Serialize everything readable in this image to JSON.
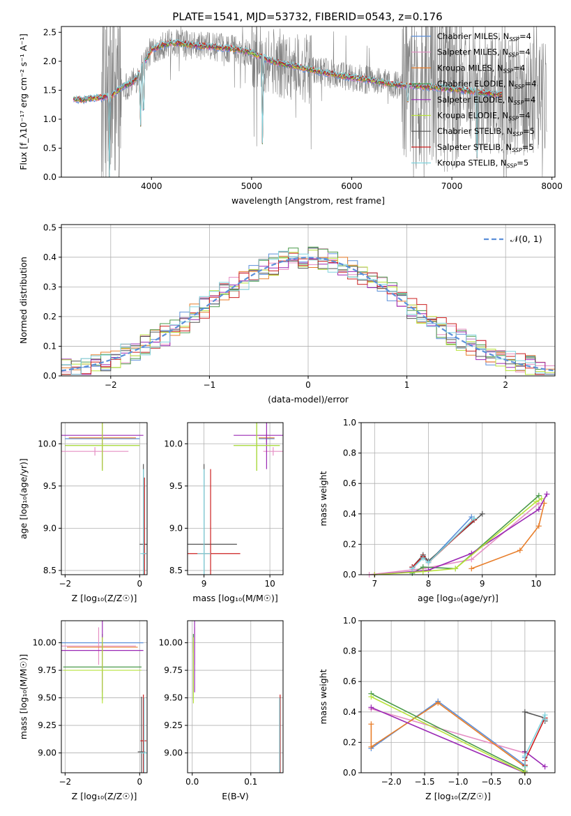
{
  "figure": {
    "title": "PLATE=1541, MJD=53732, FIBERID=0543, z=0.176"
  },
  "colors": {
    "Chabrier MILES": "#5b8fd9",
    "Salpeter MILES": "#e58fc4",
    "Kroupa MILES": "#e87e2a",
    "Chabrier ELODIE": "#4a9a4a",
    "Salpeter ELODIE": "#9a28b4",
    "Kroupa ELODIE": "#b8e33a",
    "Chabrier STELIB": "#555555",
    "Salpeter STELIB": "#cc1f1f",
    "Kroupa STELIB": "#7fd3dd",
    "data": "#808080",
    "normal": "#5b8fd9"
  },
  "chart_data": [
    {
      "id": "spectrum",
      "type": "line",
      "xlabel": "wavelength [Angstrom, rest frame]",
      "ylabel": "Flux [f_λ10⁻¹⁷ erg cm⁻² s⁻¹ A⁻¹]",
      "xlim": [
        3100,
        8030
      ],
      "ylim": [
        0,
        2.6
      ],
      "xticks": [
        4000,
        5000,
        6000,
        7000,
        8000
      ],
      "yticks": [
        0.0,
        0.5,
        1.0,
        1.5,
        2.0,
        2.5
      ],
      "legend": {
        "position": "top-right"
      },
      "series": [
        {
          "name": "Chabrier MILES",
          "nssp": "4"
        },
        {
          "name": "Salpeter MILES",
          "nssp": "4"
        },
        {
          "name": "Kroupa MILES",
          "nssp": "4"
        },
        {
          "name": "Chabrier ELODIE",
          "nssp": "4"
        },
        {
          "name": "Salpeter ELODIE",
          "nssp": "4"
        },
        {
          "name": "Kroupa ELODIE",
          "nssp": "4"
        },
        {
          "name": "Chabrier STELIB",
          "nssp": "5"
        },
        {
          "name": "Salpeter STELIB",
          "nssp": "5"
        },
        {
          "name": "Kroupa STELIB",
          "nssp": "5"
        }
      ],
      "model_continuum": {
        "x": [
          3200,
          3300,
          3400,
          3500,
          3600,
          3700,
          3800,
          3850,
          3900,
          3950,
          4000,
          4100,
          4200,
          4400,
          4600,
          4800,
          5000,
          5200,
          5400,
          5600,
          5800,
          6000,
          6200,
          6400,
          6600,
          6800,
          7000,
          7200,
          7400,
          7600
        ],
        "y": [
          1.35,
          1.33,
          1.36,
          1.37,
          1.4,
          1.55,
          1.62,
          1.7,
          1.9,
          2.05,
          2.2,
          2.27,
          2.32,
          2.28,
          2.25,
          2.22,
          2.15,
          2.0,
          1.92,
          1.85,
          1.78,
          1.72,
          1.67,
          1.6,
          1.58,
          1.55,
          1.52,
          1.48,
          1.44,
          1.42
        ]
      },
      "absorption_features": [
        {
          "x": 3580,
          "y": 0.0
        },
        {
          "x": 3890,
          "y": 0.6
        },
        {
          "x": 3920,
          "y": 0.55
        },
        {
          "x": 5110,
          "y": 0.15
        },
        {
          "x": 6560,
          "y": 1.1
        },
        {
          "x": 7250,
          "y": 0.0
        }
      ]
    },
    {
      "id": "residuals",
      "type": "line",
      "xlabel": "(data-model)/error",
      "ylabel": "Normed distribution",
      "xlim": [
        -2.5,
        2.5
      ],
      "ylim": [
        0,
        0.51
      ],
      "xticks": [
        -2,
        -1,
        0,
        1,
        2
      ],
      "yticks": [
        0.0,
        0.1,
        0.2,
        0.3,
        0.4,
        0.5
      ],
      "grid": true,
      "legend": {
        "position": "top-right",
        "label": "𝒩(0, 1)"
      },
      "bin_width": 0.1
    },
    {
      "id": "age-Z",
      "type": "scatter",
      "xlabel": "Z [log₁₀(Z/Z☉)]",
      "ylabel": "age  [log₁₀(age/yr)]",
      "xlim": [
        -2.1,
        0.2
      ],
      "ylim": [
        8.45,
        10.25
      ],
      "xticks": [
        -2,
        0
      ],
      "yticks": [
        8.5,
        9.0,
        9.5,
        10.0
      ],
      "grid": true,
      "points": [
        {
          "series": "Chabrier MILES",
          "x": -1.0,
          "y": 10.06,
          "xerr": 1.0,
          "yerr": 0.05
        },
        {
          "series": "Salpeter MILES",
          "x": -1.2,
          "y": 9.91,
          "xerr": 0.9,
          "yerr": 0.05
        },
        {
          "series": "Kroupa MILES",
          "x": -1.0,
          "y": 10.07,
          "xerr": 0.9,
          "yerr": 0.05
        },
        {
          "series": "Chabrier ELODIE",
          "x": -1.0,
          "y": 9.98,
          "xerr": 1.0,
          "yerr": 0.3
        },
        {
          "series": "Salpeter ELODIE",
          "x": -1.0,
          "y": 10.1,
          "xerr": 1.1,
          "yerr": 0.4
        },
        {
          "series": "Kroupa ELODIE",
          "x": -1.0,
          "y": 9.98,
          "xerr": 1.0,
          "yerr": 0.3
        },
        {
          "series": "Chabrier STELIB",
          "x": 0.1,
          "y": 8.81,
          "xerr": 0.1,
          "yerr": 0.95
        },
        {
          "series": "Salpeter STELIB",
          "x": 0.13,
          "y": 8.7,
          "xerr": 0.05,
          "yerr": 0.9
        },
        {
          "series": "Kroupa STELIB",
          "x": 0.1,
          "y": 8.7,
          "xerr": 0.08,
          "yerr": 1.0
        }
      ]
    },
    {
      "id": "age-mass",
      "type": "scatter",
      "xlabel": "mass [log₁₀(M/M☉)]",
      "ylabel": "",
      "xlim": [
        8.75,
        10.2
      ],
      "ylim": [
        8.45,
        10.25
      ],
      "xticks": [
        9,
        10
      ],
      "yticks": [
        8.5,
        9.0,
        9.5,
        10.0
      ],
      "grid": true,
      "points": [
        {
          "series": "Chabrier MILES",
          "x": 9.95,
          "y": 10.06,
          "xerr": 0.12,
          "yerr": 0.05
        },
        {
          "series": "Salpeter MILES",
          "x": 10.05,
          "y": 9.91,
          "xerr": 0.15,
          "yerr": 0.05
        },
        {
          "series": "Kroupa MILES",
          "x": 9.95,
          "y": 10.07,
          "xerr": 0.12,
          "yerr": 0.05
        },
        {
          "series": "Chabrier ELODIE",
          "x": 9.8,
          "y": 9.98,
          "xerr": 0.35,
          "yerr": 0.3
        },
        {
          "series": "Salpeter ELODIE",
          "x": 9.95,
          "y": 10.1,
          "xerr": 0.5,
          "yerr": 0.4
        },
        {
          "series": "Kroupa ELODIE",
          "x": 9.8,
          "y": 9.98,
          "xerr": 0.35,
          "yerr": 0.3
        },
        {
          "series": "Chabrier STELIB",
          "x": 9.0,
          "y": 8.81,
          "xerr": 0.5,
          "yerr": 0.95
        },
        {
          "series": "Salpeter STELIB",
          "x": 9.1,
          "y": 8.7,
          "xerr": 0.45,
          "yerr": 1.0
        },
        {
          "series": "Kroupa STELIB",
          "x": 9.0,
          "y": 8.7,
          "xerr": 0.1,
          "yerr": 1.0
        }
      ]
    },
    {
      "id": "weight-age",
      "type": "line",
      "xlabel": "age  [log₁₀(age/yr)]",
      "ylabel": "mass weight",
      "xlim": [
        6.75,
        10.35
      ],
      "ylim": [
        0,
        1.0
      ],
      "xticks": [
        7,
        8,
        9,
        10
      ],
      "yticks": [
        0.0,
        0.2,
        0.4,
        0.6,
        0.8,
        1.0
      ],
      "grid": true,
      "series": [
        {
          "name": "Chabrier MILES",
          "x": [
            7.7,
            7.9,
            8.0,
            8.8
          ],
          "y": [
            0.05,
            0.12,
            0.08,
            0.38
          ]
        },
        {
          "name": "Salpeter MILES",
          "x": [
            6.9,
            7.9,
            8.8,
            10.05
          ],
          "y": [
            0.0,
            0.04,
            0.1,
            0.47
          ]
        },
        {
          "name": "Kroupa MILES",
          "x": [
            8.8,
            9.7,
            10.05,
            10.15
          ],
          "y": [
            0.04,
            0.16,
            0.32,
            0.47
          ]
        },
        {
          "name": "Chabrier ELODIE",
          "x": [
            7.7,
            7.9,
            8.5,
            10.05
          ],
          "y": [
            0.01,
            0.05,
            0.04,
            0.52
          ]
        },
        {
          "name": "Salpeter ELODIE",
          "x": [
            7.0,
            8.0,
            8.8,
            10.05,
            10.2
          ],
          "y": [
            0.0,
            0.03,
            0.14,
            0.43,
            0.53
          ]
        },
        {
          "name": "Kroupa ELODIE",
          "x": [
            7.0,
            7.9,
            8.5,
            10.0,
            10.1
          ],
          "y": [
            0.0,
            0.02,
            0.04,
            0.48,
            0.5
          ]
        },
        {
          "name": "Chabrier STELIB",
          "x": [
            7.7,
            7.9,
            8.0,
            9.0
          ],
          "y": [
            0.05,
            0.13,
            0.09,
            0.4
          ]
        },
        {
          "name": "Salpeter STELIB",
          "x": [
            7.7,
            7.9,
            8.0,
            8.85
          ],
          "y": [
            0.05,
            0.12,
            0.08,
            0.36
          ]
        },
        {
          "name": "Kroupa STELIB",
          "x": [
            7.7,
            7.9,
            8.0,
            8.85
          ],
          "y": [
            0.04,
            0.11,
            0.08,
            0.37
          ]
        }
      ]
    },
    {
      "id": "mass-Z",
      "type": "scatter",
      "xlabel": "Z [log₁₀(Z/Z☉)]",
      "ylabel": "mass [log₁₀(M/M☉)]",
      "xlim": [
        -2.1,
        0.2
      ],
      "ylim": [
        8.82,
        10.2
      ],
      "xticks": [
        -2,
        0
      ],
      "yticks": [
        9.0,
        9.25,
        9.5,
        9.75,
        10.0
      ],
      "grid": true,
      "points": [
        {
          "series": "Chabrier MILES",
          "x": -1.0,
          "y": 10.0,
          "xerr": 1.1,
          "yerr": 0.05
        },
        {
          "series": "Salpeter MILES",
          "x": -1.1,
          "y": 9.97,
          "xerr": 1.0,
          "yerr": 0.17
        },
        {
          "series": "Kroupa MILES",
          "x": -1.0,
          "y": 9.96,
          "xerr": 0.95,
          "yerr": 0.05
        },
        {
          "series": "Chabrier ELODIE",
          "x": -1.0,
          "y": 9.78,
          "xerr": 1.05,
          "yerr": 0.3
        },
        {
          "series": "Salpeter ELODIE",
          "x": -1.0,
          "y": 9.93,
          "xerr": 1.1,
          "yerr": 0.38
        },
        {
          "series": "Kroupa ELODIE",
          "x": -1.0,
          "y": 9.75,
          "xerr": 1.05,
          "yerr": 0.3
        },
        {
          "series": "Chabrier STELIB",
          "x": 0.05,
          "y": 9.01,
          "xerr": 0.1,
          "yerr": 0.5
        },
        {
          "series": "Salpeter STELIB",
          "x": 0.1,
          "y": 9.11,
          "xerr": 0.08,
          "yerr": 0.42
        },
        {
          "series": "Kroupa STELIB",
          "x": 0.12,
          "y": 9.0,
          "xerr": 0.1,
          "yerr": 0.5
        }
      ]
    },
    {
      "id": "mass-ebv",
      "type": "scatter",
      "xlabel": "E(B-V)",
      "ylabel": "",
      "xlim": [
        -0.008,
        0.155
      ],
      "ylim": [
        8.82,
        10.2
      ],
      "xticks": [
        0.0,
        0.1
      ],
      "yticks": [
        9.0,
        9.25,
        9.5,
        9.75,
        10.0
      ],
      "grid": true,
      "points": [
        {
          "series": "Chabrier MILES",
          "x": 0.002,
          "y": 10.0,
          "yerr": 0.05
        },
        {
          "series": "Salpeter MILES",
          "x": 0.004,
          "y": 9.97,
          "yerr": 0.17
        },
        {
          "series": "Kroupa MILES",
          "x": 0.002,
          "y": 9.96,
          "yerr": 0.05
        },
        {
          "series": "Chabrier ELODIE",
          "x": 0.002,
          "y": 9.78,
          "yerr": 0.3
        },
        {
          "series": "Salpeter ELODIE",
          "x": 0.004,
          "y": 9.93,
          "yerr": 0.38
        },
        {
          "series": "Kroupa ELODIE",
          "x": 0.002,
          "y": 9.75,
          "yerr": 0.3
        },
        {
          "series": "Chabrier STELIB",
          "x": 0.15,
          "y": 9.01,
          "yerr": 0.5
        },
        {
          "series": "Salpeter STELIB",
          "x": 0.15,
          "y": 9.11,
          "yerr": 0.42
        },
        {
          "series": "Kroupa STELIB",
          "x": 0.149,
          "y": 9.0,
          "yerr": 0.5
        }
      ]
    },
    {
      "id": "weight-Z",
      "type": "line",
      "xlabel": "Z [log₁₀(Z/Z☉)]",
      "ylabel": "mass weight",
      "xlim": [
        -2.45,
        0.45
      ],
      "ylim": [
        0,
        1.0
      ],
      "xticks": [
        -2.0,
        -1.5,
        -1.0,
        -0.5,
        0.0
      ],
      "yticks": [
        0.0,
        0.2,
        0.4,
        0.6,
        0.8,
        1.0
      ],
      "grid": true,
      "series": [
        {
          "name": "Chabrier MILES",
          "x": [
            -2.3,
            -1.3,
            0.0,
            0.0
          ],
          "y": [
            0.16,
            0.47,
            0.05,
            0.1
          ]
        },
        {
          "name": "Salpeter MILES",
          "x": [
            -2.3,
            0.0
          ],
          "y": [
            0.42,
            0.13
          ]
        },
        {
          "name": "Kroupa MILES",
          "x": [
            -2.3,
            -2.3,
            -1.3,
            0.0,
            0.0
          ],
          "y": [
            0.32,
            0.17,
            0.46,
            0.04,
            0.0
          ]
        },
        {
          "name": "Chabrier ELODIE",
          "x": [
            -2.3,
            0.0,
            0.0
          ],
          "y": [
            0.52,
            0.01,
            0.05
          ]
        },
        {
          "name": "Salpeter ELODIE",
          "x": [
            -2.3,
            0.0,
            0.0,
            0.3
          ],
          "y": [
            0.43,
            0.0,
            0.14,
            0.04
          ]
        },
        {
          "name": "Kroupa ELODIE",
          "x": [
            -2.3,
            0.0,
            0.0
          ],
          "y": [
            0.5,
            0.0,
            0.04
          ]
        },
        {
          "name": "Chabrier STELIB",
          "x": [
            0.0,
            0.0,
            0.3,
            0.3
          ],
          "y": [
            0.05,
            0.4,
            0.36,
            0.34
          ]
        },
        {
          "name": "Salpeter STELIB",
          "x": [
            0.0,
            0.0,
            0.3,
            0.3
          ],
          "y": [
            0.05,
            0.08,
            0.36,
            0.35
          ]
        },
        {
          "name": "Kroupa STELIB",
          "x": [
            0.0,
            0.0,
            0.3,
            0.3
          ],
          "y": [
            0.04,
            0.11,
            0.38,
            0.35
          ]
        }
      ]
    }
  ]
}
